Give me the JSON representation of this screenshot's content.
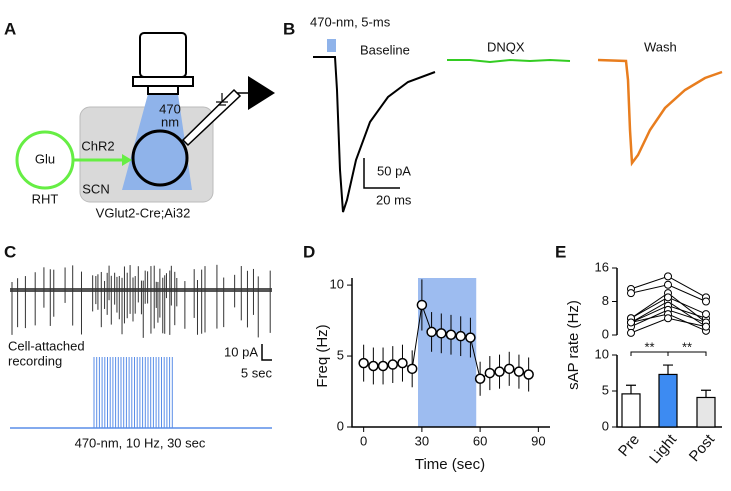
{
  "panel_labels": [
    "A",
    "B",
    "C",
    "D",
    "E"
  ],
  "panel_a": {
    "light": [
      "470",
      "nm"
    ],
    "opsin": "ChR2",
    "transmitter": "Glu",
    "input": "RHT",
    "region": "SCN",
    "mouse": "VGlut2-Cre;Ai32"
  },
  "panel_b": {
    "stimulus": "470-nm, 5-ms",
    "conditions": [
      {
        "name": "Baseline",
        "color": "#000000"
      },
      {
        "name": "DNQX",
        "color": "#33cc22"
      },
      {
        "name": "Wash",
        "color": "#e87d1e"
      }
    ],
    "scale_y": "50 pA",
    "scale_x": "20 ms"
  },
  "panel_c": {
    "recording": [
      "Cell-attached",
      "recording"
    ],
    "scale_y": "10 pA",
    "scale_x": "5 sec",
    "stimulus": "470-nm, 10 Hz, 30 sec"
  },
  "chart_data": [
    {
      "type": "line",
      "x_label": "Time (sec)",
      "y_label": "Freq (Hz)",
      "x": [
        0,
        5,
        10,
        15,
        20,
        25,
        30,
        35,
        40,
        45,
        50,
        55,
        60,
        65,
        70,
        75,
        80,
        85
      ],
      "series": [
        {
          "color": "#000000",
          "values": [
            4.5,
            4.3,
            4.3,
            4.4,
            4.5,
            4.1,
            8.6,
            6.7,
            6.6,
            6.5,
            6.4,
            6.3,
            3.4,
            3.8,
            3.9,
            4.1,
            3.9,
            3.7
          ],
          "errors": [
            1.3,
            1.3,
            1.3,
            1.3,
            1.3,
            1.3,
            1.8,
            1.4,
            1.4,
            1.4,
            1.4,
            1.4,
            1.2,
            1.2,
            1.2,
            1.2,
            1.2,
            1.2
          ]
        }
      ],
      "highlight_x": [
        28,
        58
      ],
      "highlight_color": "#9dbcf0",
      "xlim": [
        -6,
        96
      ],
      "ylim": [
        0,
        10.5
      ],
      "xticks": [
        0,
        30,
        60,
        90
      ],
      "yticks": [
        0,
        5,
        10
      ]
    },
    {
      "type": "paired",
      "series": [
        {
          "values": [
            11,
            14,
            9
          ]
        },
        {
          "values": [
            10,
            12,
            8
          ]
        },
        {
          "values": [
            4,
            10,
            3
          ]
        },
        {
          "values": [
            3,
            8,
            2
          ]
        },
        {
          "values": [
            3,
            7,
            4
          ]
        },
        {
          "values": [
            2,
            6,
            3
          ]
        },
        {
          "values": [
            4,
            9,
            5
          ]
        },
        {
          "values": [
            3,
            5,
            1
          ]
        },
        {
          "values": [
            0.5,
            4,
            2
          ]
        }
      ],
      "ylim": [
        0,
        16
      ],
      "yticks": [
        0,
        8,
        16
      ]
    },
    {
      "type": "bar",
      "y_label": "sAP rate (Hz)",
      "categories": [
        "Pre",
        "Light",
        "Post"
      ],
      "values": [
        4.6,
        7.3,
        4.1
      ],
      "errors": [
        1.2,
        1.3,
        1.0
      ],
      "colors": [
        "#ffffff",
        "#3d8bf2",
        "#e6e6e6"
      ],
      "ylim": [
        0,
        10
      ],
      "yticks": [
        0,
        5,
        10
      ],
      "annotations": [
        "**",
        "**"
      ]
    }
  ]
}
